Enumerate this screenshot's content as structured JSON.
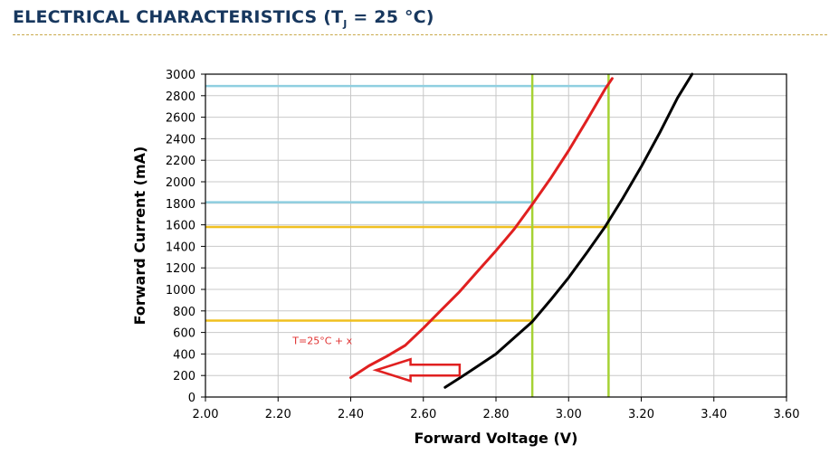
{
  "header": {
    "title_prefix": "ELECTRICAL CHARACTERISTICS (T",
    "title_subscript": "J",
    "title_suffix": " = 25 °C)"
  },
  "chart_data": {
    "type": "line",
    "xlabel": "Forward Voltage (V)",
    "ylabel": "Forward Current (mA)",
    "xlim": [
      2.0,
      3.6
    ],
    "ylim": [
      0,
      3000
    ],
    "xticks": [
      "2.00",
      "2.20",
      "2.40",
      "2.60",
      "2.80",
      "3.00",
      "3.20",
      "3.40",
      "3.60"
    ],
    "yticks": [
      "0",
      "200",
      "400",
      "600",
      "800",
      "1000",
      "1200",
      "1400",
      "1600",
      "1800",
      "2000",
      "2200",
      "2400",
      "2600",
      "2800",
      "3000"
    ],
    "grid": true,
    "series": [
      {
        "color": "#000000",
        "x": [
          2.66,
          2.72,
          2.76,
          2.8,
          2.84,
          2.9,
          2.95,
          3.0,
          3.05,
          3.1,
          3.15,
          3.2,
          3.25,
          3.3,
          3.34
        ],
        "y": [
          90,
          220,
          310,
          400,
          520,
          700,
          900,
          1110,
          1340,
          1580,
          1850,
          2140,
          2450,
          2780,
          3000
        ]
      },
      {
        "color": "#e02020",
        "x": [
          2.4,
          2.45,
          2.5,
          2.55,
          2.6,
          2.65,
          2.7,
          2.75,
          2.8,
          2.85,
          2.9,
          2.95,
          3.0,
          3.05,
          3.1,
          3.12
        ],
        "y": [
          180,
          290,
          380,
          480,
          640,
          810,
          980,
          1170,
          1360,
          1560,
          1790,
          2030,
          2290,
          2570,
          2860,
          2960
        ]
      }
    ],
    "reference_lines": {
      "vertical": {
        "color": "#a6d234",
        "x": [
          2.9,
          3.11
        ]
      },
      "horizontal": [
        {
          "color": "#8fcfe0",
          "y": 2890,
          "x_end": 3.11
        },
        {
          "color": "#8fcfe0",
          "y": 1810,
          "x_end": 2.9
        },
        {
          "color": "#f0c020",
          "y": 1580,
          "x_end": 3.11
        },
        {
          "color": "#f0c020",
          "y": 710,
          "x_end": 2.9
        }
      ]
    },
    "annotations": [
      {
        "text": "T=25°C + x",
        "color": "#e03030",
        "x": 2.24,
        "y": 490
      }
    ],
    "arrow": {
      "color": "#e02020",
      "from_x": 2.7,
      "to_x": 2.47,
      "y": 250
    }
  }
}
